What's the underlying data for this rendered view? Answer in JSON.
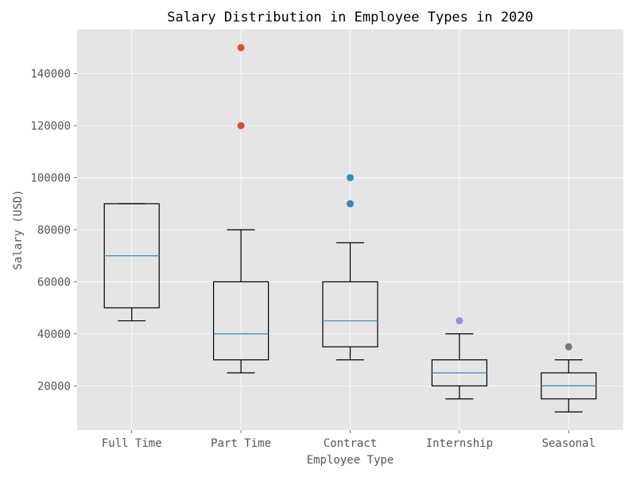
{
  "chart_data": {
    "type": "box",
    "title": "Salary Distribution in Employee Types in 2020",
    "xlabel": "Employee Type",
    "ylabel": "Salary (USD)",
    "ylim": [
      3000,
      157000
    ],
    "yticks": [
      20000,
      40000,
      60000,
      80000,
      100000,
      120000,
      140000
    ],
    "grid": true,
    "categories": [
      "Full Time",
      "Part Time",
      "Contract",
      "Internship",
      "Seasonal"
    ],
    "boxes": [
      {
        "category": "Full Time",
        "whisker_low": 45000,
        "q1": 50000,
        "median": 70000,
        "q3": 90000,
        "whisker_high": 90000,
        "outliers": []
      },
      {
        "category": "Part Time",
        "whisker_low": 25000,
        "q1": 30000,
        "median": 40000,
        "q3": 60000,
        "whisker_high": 80000,
        "outliers": [
          120000,
          150000
        ]
      },
      {
        "category": "Contract",
        "whisker_low": 30000,
        "q1": 35000,
        "median": 45000,
        "q3": 60000,
        "whisker_high": 75000,
        "outliers": [
          90000,
          100000
        ]
      },
      {
        "category": "Internship",
        "whisker_low": 15000,
        "q1": 20000,
        "median": 25000,
        "q3": 30000,
        "whisker_high": 40000,
        "outliers": [
          45000
        ]
      },
      {
        "category": "Seasonal",
        "whisker_low": 10000,
        "q1": 15000,
        "median": 20000,
        "q3": 25000,
        "whisker_high": 30000,
        "outliers": [
          35000
        ]
      }
    ],
    "colors": {
      "plot_background": "#e5e5e5",
      "grid": "#ffffff",
      "box_edge": "#000000",
      "median": "#348abd",
      "outliers": [
        "#e24a33",
        "#e24a33",
        "#348abd",
        "#988ed5",
        "#777777"
      ]
    }
  }
}
